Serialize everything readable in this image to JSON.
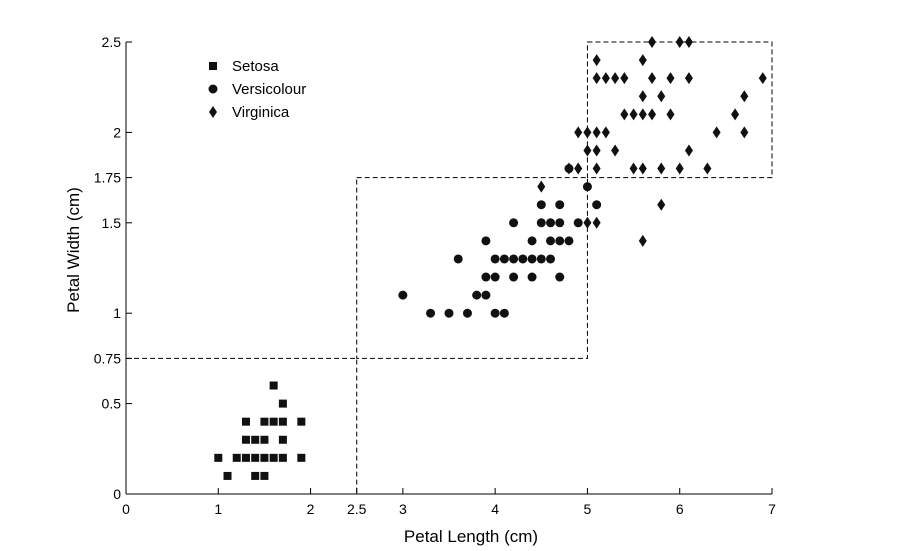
{
  "chart_data": {
    "type": "scatter",
    "title": "",
    "xlabel": "Petal Length (cm)",
    "ylabel": "Petal Width (cm)",
    "xlim": [
      0,
      7
    ],
    "ylim": [
      0,
      2.5
    ],
    "grid": false,
    "legend_position": "top-left",
    "x_ticks": [
      0,
      1,
      2,
      2.5,
      3,
      4,
      5,
      6,
      7
    ],
    "x_tick_labels": [
      "0",
      "1",
      "2",
      "2.5",
      "3",
      "4",
      "5",
      "6",
      "7"
    ],
    "y_ticks": [
      0,
      0.5,
      0.75,
      1,
      1.5,
      1.75,
      2,
      2.5
    ],
    "y_tick_labels": [
      "0",
      "0.5",
      "0.75",
      "1",
      "1.5",
      "1.75",
      "2",
      "2.5"
    ],
    "marker_color": "#111111",
    "series": [
      {
        "name": "Setosa",
        "marker": "square",
        "points": [
          [
            1.0,
            0.2
          ],
          [
            1.1,
            0.1
          ],
          [
            1.2,
            0.2
          ],
          [
            1.3,
            0.2
          ],
          [
            1.3,
            0.3
          ],
          [
            1.3,
            0.4
          ],
          [
            1.4,
            0.1
          ],
          [
            1.4,
            0.2
          ],
          [
            1.4,
            0.3
          ],
          [
            1.5,
            0.1
          ],
          [
            1.5,
            0.2
          ],
          [
            1.5,
            0.3
          ],
          [
            1.5,
            0.4
          ],
          [
            1.6,
            0.2
          ],
          [
            1.6,
            0.4
          ],
          [
            1.6,
            0.6
          ],
          [
            1.7,
            0.2
          ],
          [
            1.7,
            0.3
          ],
          [
            1.7,
            0.4
          ],
          [
            1.7,
            0.5
          ],
          [
            1.9,
            0.2
          ],
          [
            1.9,
            0.4
          ]
        ]
      },
      {
        "name": "Versicolour",
        "marker": "circle",
        "points": [
          [
            3.0,
            1.1
          ],
          [
            3.3,
            1.0
          ],
          [
            3.5,
            1.0
          ],
          [
            3.6,
            1.3
          ],
          [
            3.7,
            1.0
          ],
          [
            3.8,
            1.1
          ],
          [
            3.9,
            1.1
          ],
          [
            3.9,
            1.2
          ],
          [
            3.9,
            1.4
          ],
          [
            4.0,
            1.0
          ],
          [
            4.0,
            1.2
          ],
          [
            4.0,
            1.3
          ],
          [
            4.1,
            1.0
          ],
          [
            4.1,
            1.3
          ],
          [
            4.2,
            1.2
          ],
          [
            4.2,
            1.3
          ],
          [
            4.2,
            1.5
          ],
          [
            4.3,
            1.3
          ],
          [
            4.4,
            1.2
          ],
          [
            4.4,
            1.3
          ],
          [
            4.4,
            1.4
          ],
          [
            4.5,
            1.3
          ],
          [
            4.5,
            1.5
          ],
          [
            4.5,
            1.6
          ],
          [
            4.6,
            1.3
          ],
          [
            4.6,
            1.4
          ],
          [
            4.6,
            1.5
          ],
          [
            4.7,
            1.2
          ],
          [
            4.7,
            1.4
          ],
          [
            4.7,
            1.5
          ],
          [
            4.7,
            1.6
          ],
          [
            4.8,
            1.4
          ],
          [
            4.8,
            1.8
          ],
          [
            4.9,
            1.5
          ],
          [
            5.0,
            1.7
          ],
          [
            5.1,
            1.6
          ]
        ]
      },
      {
        "name": "Virginica",
        "marker": "diamond",
        "points": [
          [
            4.5,
            1.7
          ],
          [
            4.8,
            1.8
          ],
          [
            4.9,
            1.8
          ],
          [
            4.9,
            2.0
          ],
          [
            5.0,
            1.5
          ],
          [
            5.0,
            1.9
          ],
          [
            5.0,
            2.0
          ],
          [
            5.1,
            1.5
          ],
          [
            5.1,
            1.8
          ],
          [
            5.1,
            1.9
          ],
          [
            5.1,
            2.0
          ],
          [
            5.1,
            2.3
          ],
          [
            5.1,
            2.4
          ],
          [
            5.2,
            2.0
          ],
          [
            5.2,
            2.3
          ],
          [
            5.3,
            1.9
          ],
          [
            5.3,
            2.3
          ],
          [
            5.4,
            2.1
          ],
          [
            5.4,
            2.3
          ],
          [
            5.5,
            1.8
          ],
          [
            5.5,
            2.1
          ],
          [
            5.6,
            1.4
          ],
          [
            5.6,
            1.8
          ],
          [
            5.6,
            2.1
          ],
          [
            5.6,
            2.2
          ],
          [
            5.6,
            2.4
          ],
          [
            5.7,
            2.1
          ],
          [
            5.7,
            2.3
          ],
          [
            5.7,
            2.5
          ],
          [
            5.8,
            1.6
          ],
          [
            5.8,
            1.8
          ],
          [
            5.8,
            2.2
          ],
          [
            5.9,
            2.1
          ],
          [
            5.9,
            2.3
          ],
          [
            6.0,
            1.8
          ],
          [
            6.0,
            2.5
          ],
          [
            6.1,
            1.9
          ],
          [
            6.1,
            2.3
          ],
          [
            6.1,
            2.5
          ],
          [
            6.3,
            1.8
          ],
          [
            6.4,
            2.0
          ],
          [
            6.6,
            2.1
          ],
          [
            6.7,
            2.0
          ],
          [
            6.7,
            2.2
          ],
          [
            6.9,
            2.3
          ]
        ]
      }
    ],
    "decision_regions": [
      {
        "x_range": [
          0,
          2.5
        ],
        "y_range": [
          0,
          0.75
        ]
      },
      {
        "x_range": [
          2.5,
          5
        ],
        "y_range": [
          0.75,
          1.75
        ]
      },
      {
        "x_range": [
          5,
          7
        ],
        "y_range": [
          1.75,
          2.5
        ]
      }
    ]
  }
}
